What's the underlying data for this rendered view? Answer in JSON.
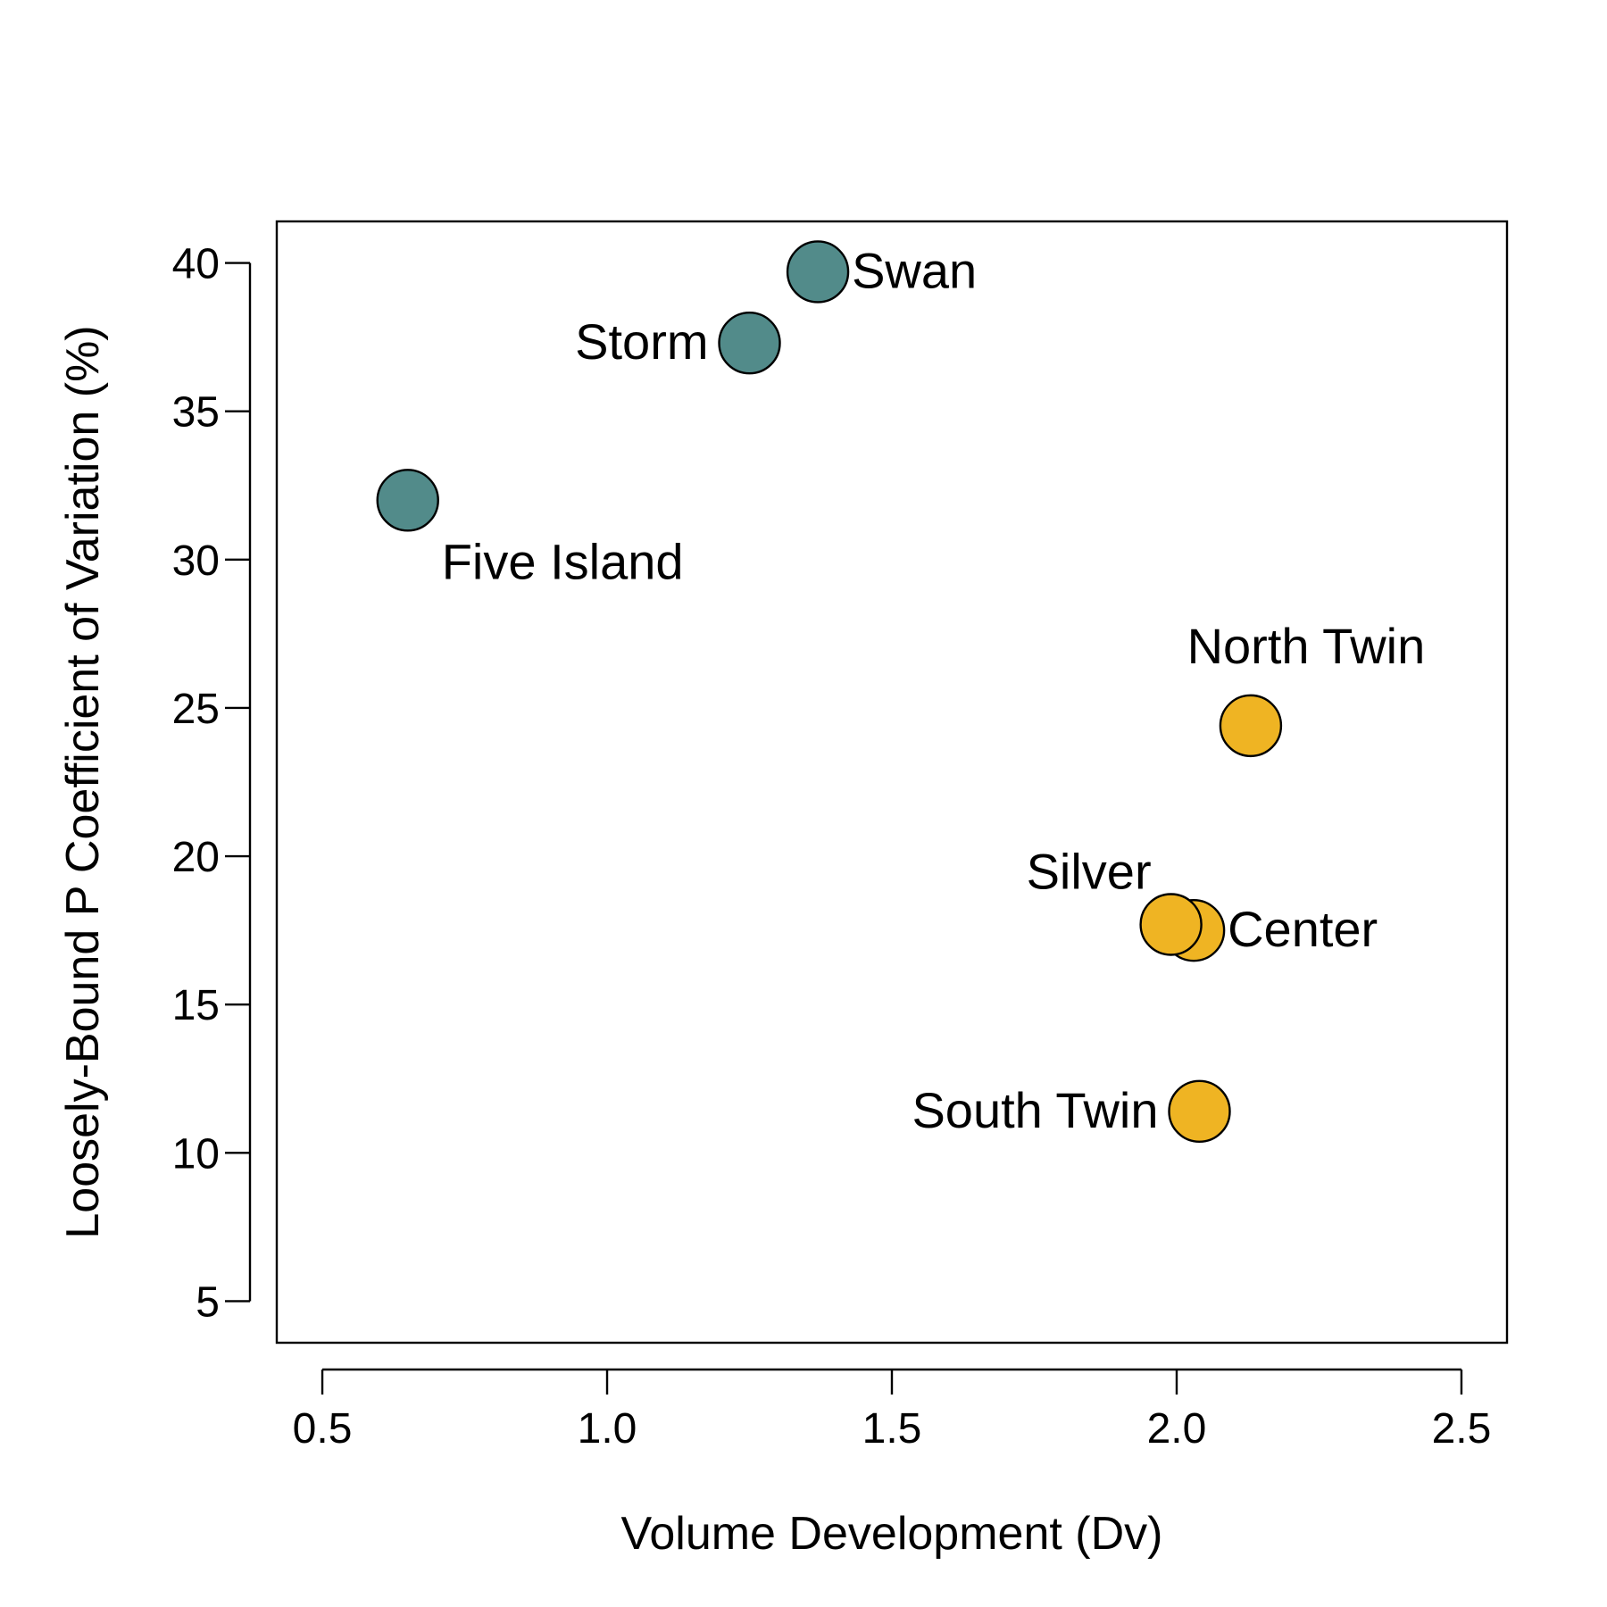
{
  "chart_data": {
    "type": "scatter",
    "xlabel": "Volume Development (Dv)",
    "ylabel": "Loosely-Bound P Coefficient of Variation (%)",
    "xlim": [
      0.42,
      2.58
    ],
    "ylim": [
      3.6,
      41.4
    ],
    "xticks": [
      "0.5",
      "1.0",
      "1.5",
      "2.0",
      "2.5"
    ],
    "yticks": [
      "5",
      "10",
      "15",
      "20",
      "25",
      "30",
      "35",
      "40"
    ],
    "grid": false,
    "legend": "none",
    "colors": {
      "teal": "#528b8a",
      "gold": "#efb423"
    },
    "points": [
      {
        "label": "Swan",
        "x": 1.37,
        "y": 39.7,
        "color": "#528b8a",
        "label_pos": "right"
      },
      {
        "label": "Storm",
        "x": 1.25,
        "y": 37.3,
        "color": "#528b8a",
        "label_pos": "left"
      },
      {
        "label": "Five Island",
        "x": 0.65,
        "y": 32.0,
        "color": "#528b8a",
        "label_pos": "below-right"
      },
      {
        "label": "North Twin",
        "x": 2.13,
        "y": 24.4,
        "color": "#efb423",
        "label_pos": "above"
      },
      {
        "label": "Center",
        "x": 2.03,
        "y": 17.5,
        "color": "#efb423",
        "label_pos": "right"
      },
      {
        "label": "Silver",
        "x": 1.99,
        "y": 17.7,
        "color": "#efb423",
        "label_pos": "above-left"
      },
      {
        "label": "South Twin",
        "x": 2.04,
        "y": 11.4,
        "color": "#efb423",
        "label_pos": "left"
      }
    ]
  }
}
